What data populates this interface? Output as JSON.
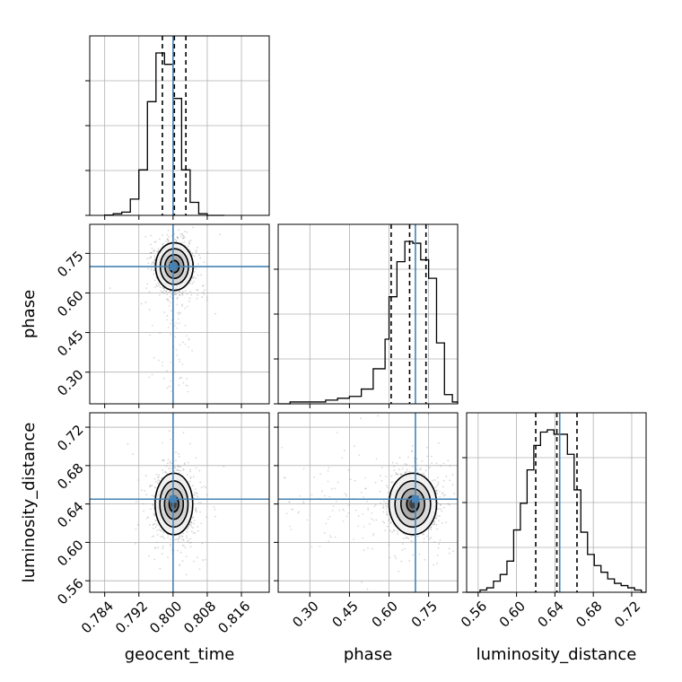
{
  "colors": {
    "truth": "#4682b4",
    "line": "#000000",
    "grid": "#b0b0b0",
    "point": "#8c8c8c"
  },
  "chart_data": {
    "type": "corner",
    "parameters": [
      {
        "name": "geocent_time",
        "label": "geocent_time",
        "range": [
          0.7805,
          0.8225
        ],
        "ticks": [
          0.784,
          0.792,
          0.8,
          0.808,
          0.816
        ],
        "truth": 0.8,
        "quantiles": [
          0.7975,
          0.8003,
          0.803
        ]
      },
      {
        "name": "phase",
        "label": "phase",
        "range": [
          0.18,
          0.86
        ],
        "ticks": [
          0.3,
          0.45,
          0.6,
          0.75
        ],
        "truth": 0.7,
        "quantiles": [
          0.608,
          0.678,
          0.74
        ]
      },
      {
        "name": "luminosity_distance",
        "label": "luminosity_distance",
        "range": [
          0.548,
          0.735
        ],
        "ticks": [
          0.56,
          0.6,
          0.64,
          0.68,
          0.72
        ],
        "truth": 0.645,
        "quantiles": [
          0.62,
          0.642,
          0.663
        ]
      }
    ],
    "tick_labels": {
      "geocent_time": [
        "0.784",
        "0.792",
        "0.800",
        "0.808",
        "0.816"
      ],
      "phase": [
        "0.30",
        "0.45",
        "0.60",
        "0.75"
      ],
      "luminosity_distance": [
        "0.56",
        "0.60",
        "0.64",
        "0.68",
        "0.72"
      ]
    },
    "histograms": {
      "geocent_time": {
        "bin_edges": [
          0.784,
          0.786,
          0.788,
          0.79,
          0.792,
          0.794,
          0.796,
          0.798,
          0.8,
          0.802,
          0.804,
          0.806,
          0.808,
          0.81,
          0.812
        ],
        "counts": [
          0.002,
          0.01,
          0.02,
          0.1,
          0.28,
          0.7,
          1.0,
          0.93,
          0.72,
          0.28,
          0.08,
          0.01,
          0.0,
          0.0
        ]
      },
      "phase": {
        "bin_edges": [
          0.18,
          0.225,
          0.27,
          0.315,
          0.36,
          0.405,
          0.45,
          0.495,
          0.54,
          0.585,
          0.6,
          0.63,
          0.66,
          0.69,
          0.72,
          0.75,
          0.78,
          0.81,
          0.84,
          0.86
        ],
        "counts": [
          0.0,
          0.01,
          0.01,
          0.01,
          0.02,
          0.03,
          0.04,
          0.08,
          0.19,
          0.35,
          0.58,
          0.77,
          0.88,
          0.87,
          0.78,
          0.68,
          0.33,
          0.05,
          0.01
        ]
      },
      "luminosity_distance": {
        "bin_edges": [
          0.548,
          0.555,
          0.562,
          0.569,
          0.576,
          0.583,
          0.59,
          0.597,
          0.604,
          0.611,
          0.618,
          0.625,
          0.632,
          0.639,
          0.646,
          0.653,
          0.66,
          0.667,
          0.674,
          0.681,
          0.688,
          0.695,
          0.702,
          0.709,
          0.716,
          0.723,
          0.73,
          0.735
        ],
        "counts": [
          0.0,
          0.0,
          0.01,
          0.02,
          0.05,
          0.08,
          0.14,
          0.28,
          0.4,
          0.55,
          0.66,
          0.72,
          0.73,
          0.71,
          0.71,
          0.62,
          0.46,
          0.27,
          0.17,
          0.12,
          0.09,
          0.06,
          0.04,
          0.03,
          0.02,
          0.01,
          0.0
        ]
      }
    },
    "pairs": [
      {
        "x": "geocent_time",
        "y": "phase",
        "center": [
          0.8003,
          0.7
        ],
        "sigma": [
          0.0022,
          0.045
        ],
        "rho": -0.1,
        "contour_levels": [
          0.5,
          1.0,
          1.5,
          2.0
        ]
      },
      {
        "x": "geocent_time",
        "y": "luminosity_distance",
        "center": [
          0.8002,
          0.64
        ],
        "sigma": [
          0.0022,
          0.016
        ],
        "rho": 0.0,
        "contour_levels": [
          0.5,
          1.0,
          1.5,
          2.0
        ]
      },
      {
        "x": "phase",
        "y": "luminosity_distance",
        "center": [
          0.69,
          0.64
        ],
        "sigma": [
          0.045,
          0.016
        ],
        "rho": 0.0,
        "contour_levels": [
          0.5,
          1.0,
          1.5,
          2.0
        ]
      }
    ],
    "grid": true
  }
}
